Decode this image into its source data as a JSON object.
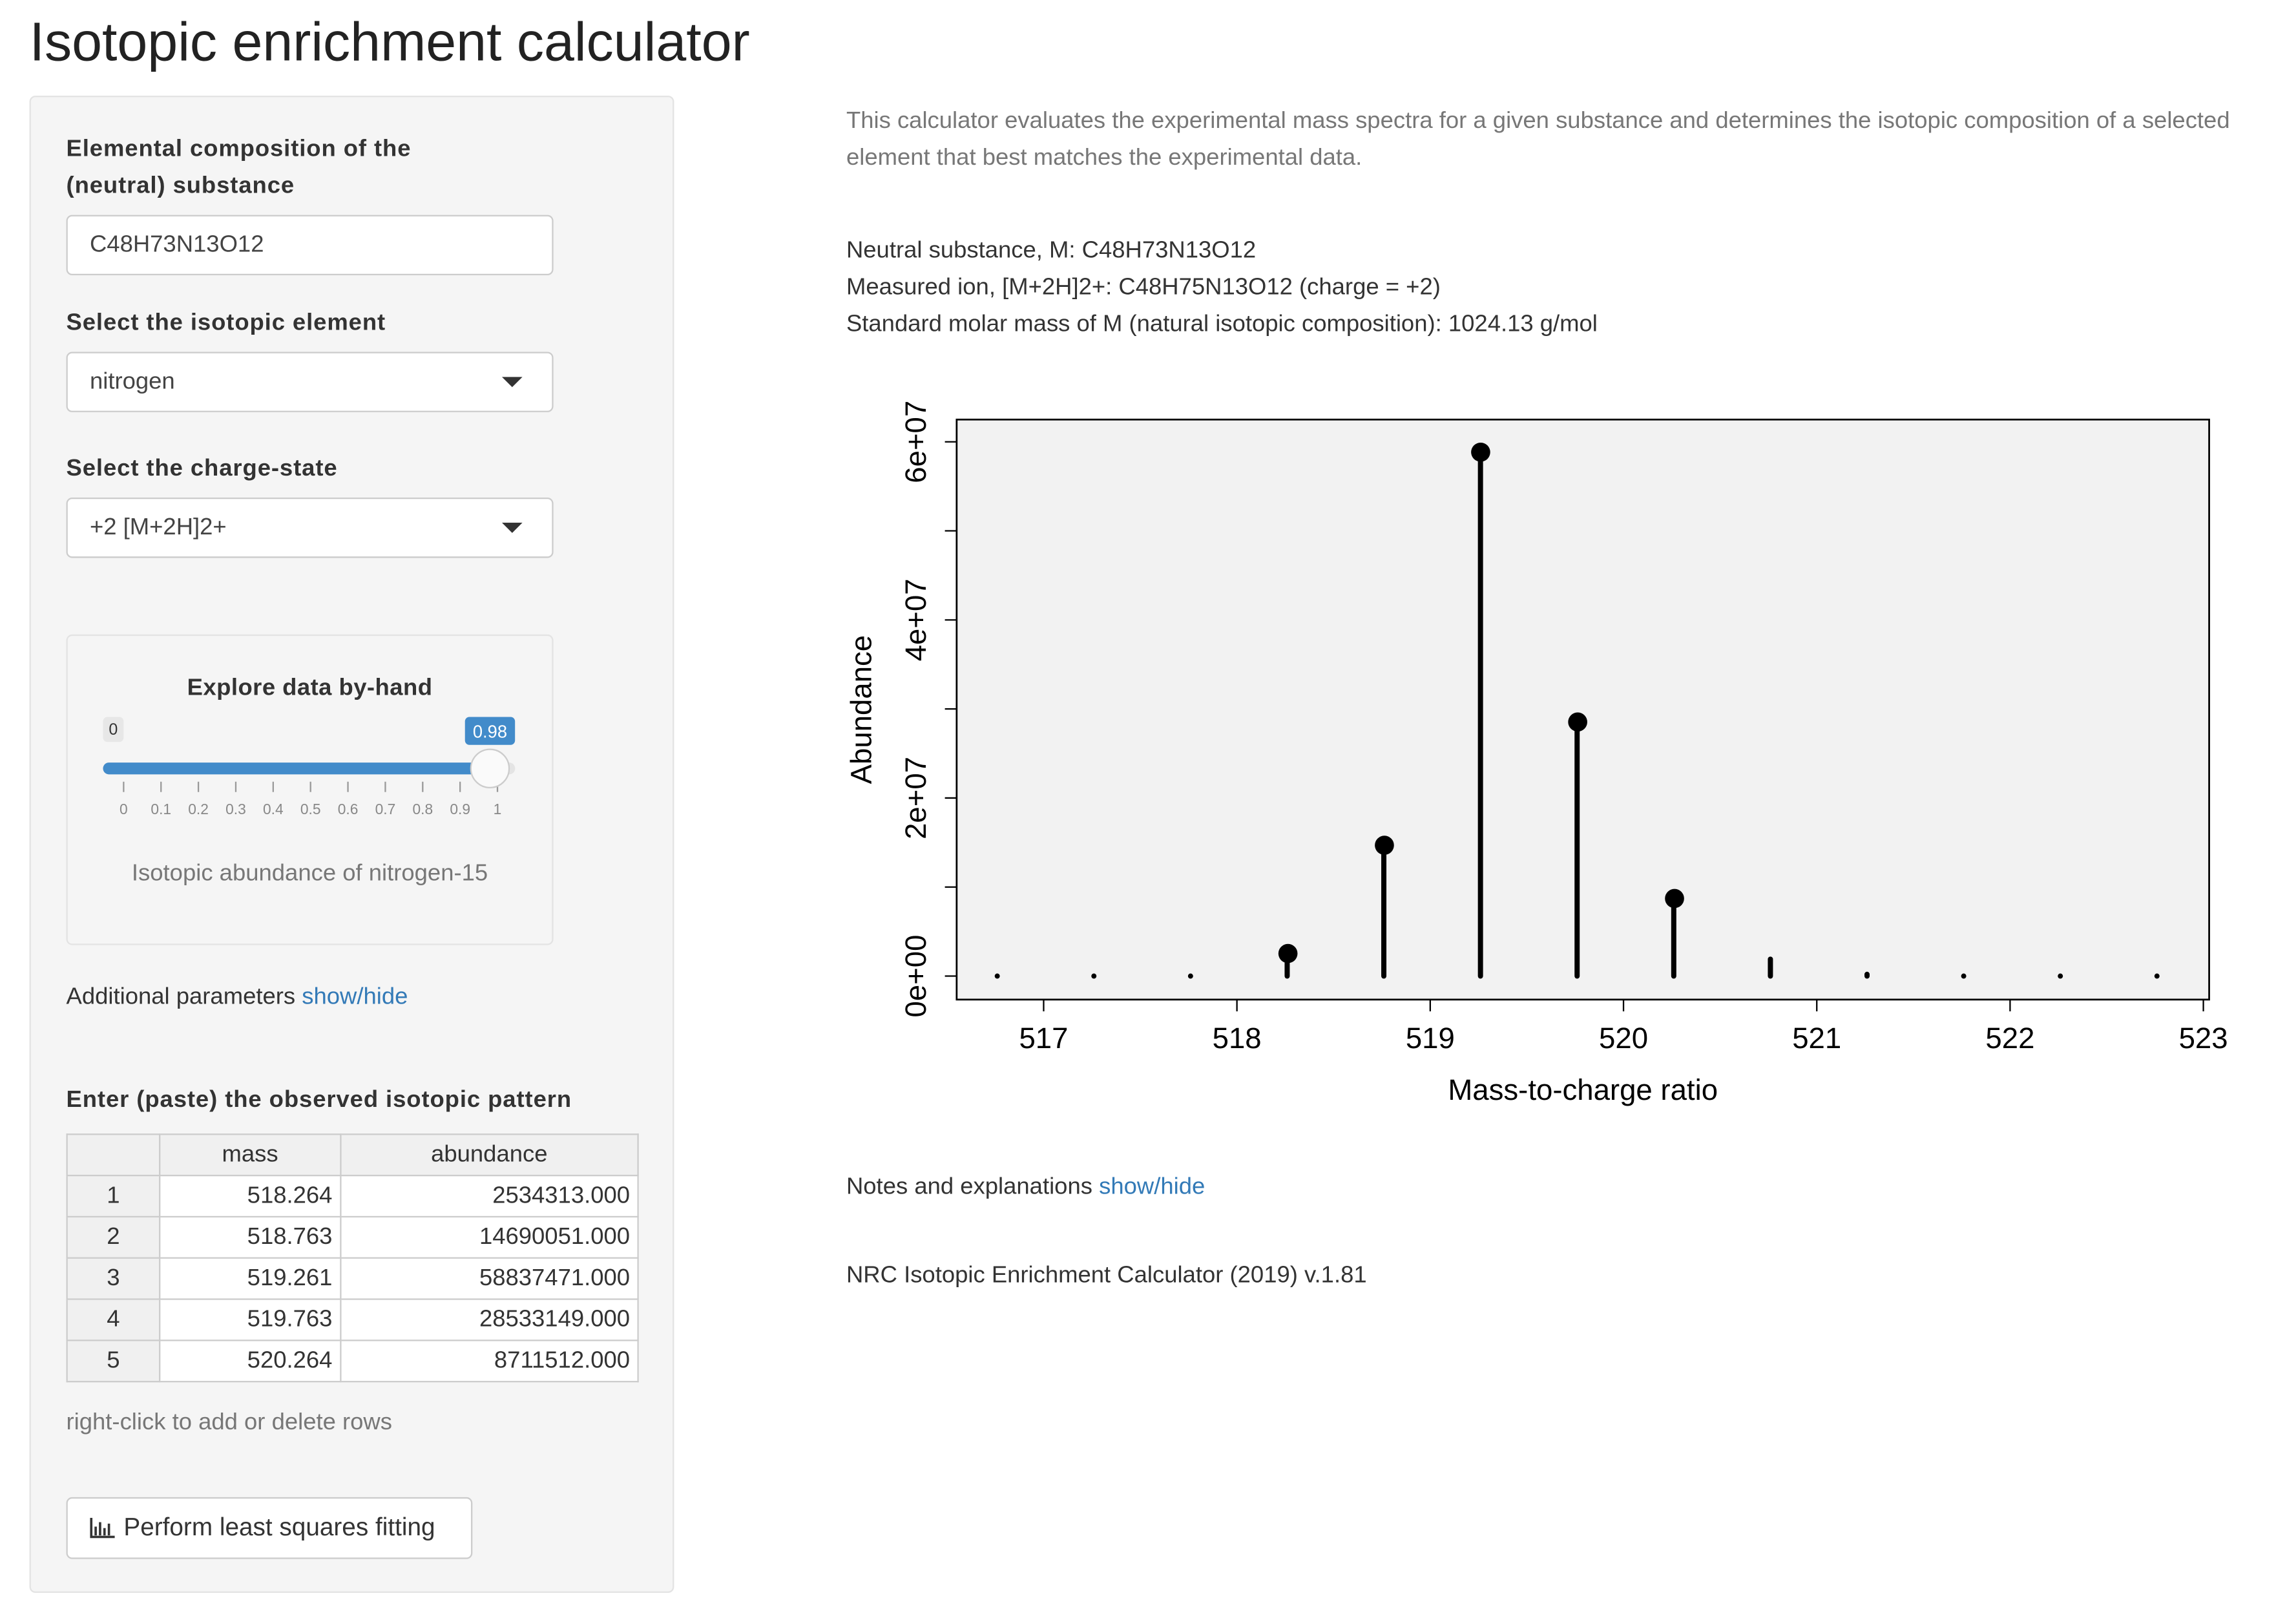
{
  "header": {
    "title": "Isotopic enrichment calculator"
  },
  "sidebar": {
    "composition_label": "Elemental composition of the (neutral) substance",
    "composition_value": "C48H73N13O12",
    "element_label": "Select the isotopic element",
    "element_value": "nitrogen",
    "charge_label": "Select the charge-state",
    "charge_value": "+2 [M+2H]2+",
    "explore_title": "Explore data by-hand",
    "slider": {
      "min": 0,
      "max": 1,
      "value": 0.98,
      "ticks": [
        0,
        0.1,
        0.2,
        0.3,
        0.4,
        0.5,
        0.6,
        0.7,
        0.8,
        0.9,
        1
      ],
      "caption": "Isotopic abundance of nitrogen-15"
    },
    "additional_text": "Additional parameters",
    "additional_link": "show/hide",
    "pattern_label": "Enter (paste) the observed isotopic pattern",
    "table": {
      "columns": [
        "mass",
        "abundance"
      ],
      "rows": [
        [
          "1",
          "518.264",
          "2534313.000"
        ],
        [
          "2",
          "518.763",
          "14690051.000"
        ],
        [
          "3",
          "519.261",
          "58837471.000"
        ],
        [
          "4",
          "519.763",
          "28533149.000"
        ],
        [
          "5",
          "520.264",
          "8711512.000"
        ]
      ]
    },
    "table_hint": "right-click to add or delete rows",
    "button": "Perform least squares fitting"
  },
  "main": {
    "intro": "This calculator evaluates the experimental mass spectra for a given substance and determines the isotopic composition of a selected element that best matches the experimental data.",
    "info": [
      "Neutral substance, M: C48H73N13O12",
      "Measured ion, [M+2H]2+: C48H75N13O12 (charge = +2)",
      "Standard molar mass of M (natural isotopic composition): 1024.13 g/mol"
    ],
    "notes_text": "Notes and explanations",
    "notes_link": "show/hide",
    "footer": "NRC Isotopic Enrichment Calculator (2019) v.1.81"
  },
  "chart_data": {
    "type": "stem",
    "x_label": "Mass-to-charge ratio",
    "y_label": "Abundance",
    "xlim": [
      516.55,
      523.03
    ],
    "ylim": [
      -2640000,
      62500000
    ],
    "xticks": [
      517,
      518,
      519,
      520,
      521,
      522,
      523
    ],
    "yticks": [
      {
        "value": 0,
        "label": "0e+00"
      },
      {
        "value": 20000000,
        "label": "2e+07"
      },
      {
        "value": 40000000,
        "label": "4e+07"
      },
      {
        "value": 60000000,
        "label": "6e+07"
      }
    ],
    "yminorticks": [
      10000000,
      30000000,
      50000000
    ],
    "background": "#f2f2f2",
    "series": [
      {
        "style": "stem",
        "color": "#000000",
        "x": [
          516.76,
          517.26,
          517.76,
          518.26,
          518.76,
          519.26,
          519.76,
          520.26,
          520.76,
          521.26,
          521.76,
          522.26,
          522.76
        ],
        "values": [
          0,
          0,
          0,
          2300000,
          14700000,
          58800000,
          28500000,
          8700000,
          1900000,
          200000,
          0,
          0,
          0
        ]
      },
      {
        "style": "point",
        "color": "#000000",
        "x": [
          518.264,
          518.763,
          519.261,
          519.763,
          520.264
        ],
        "values": [
          2534313,
          14690051,
          58837471,
          28533149,
          8711512
        ]
      }
    ]
  }
}
